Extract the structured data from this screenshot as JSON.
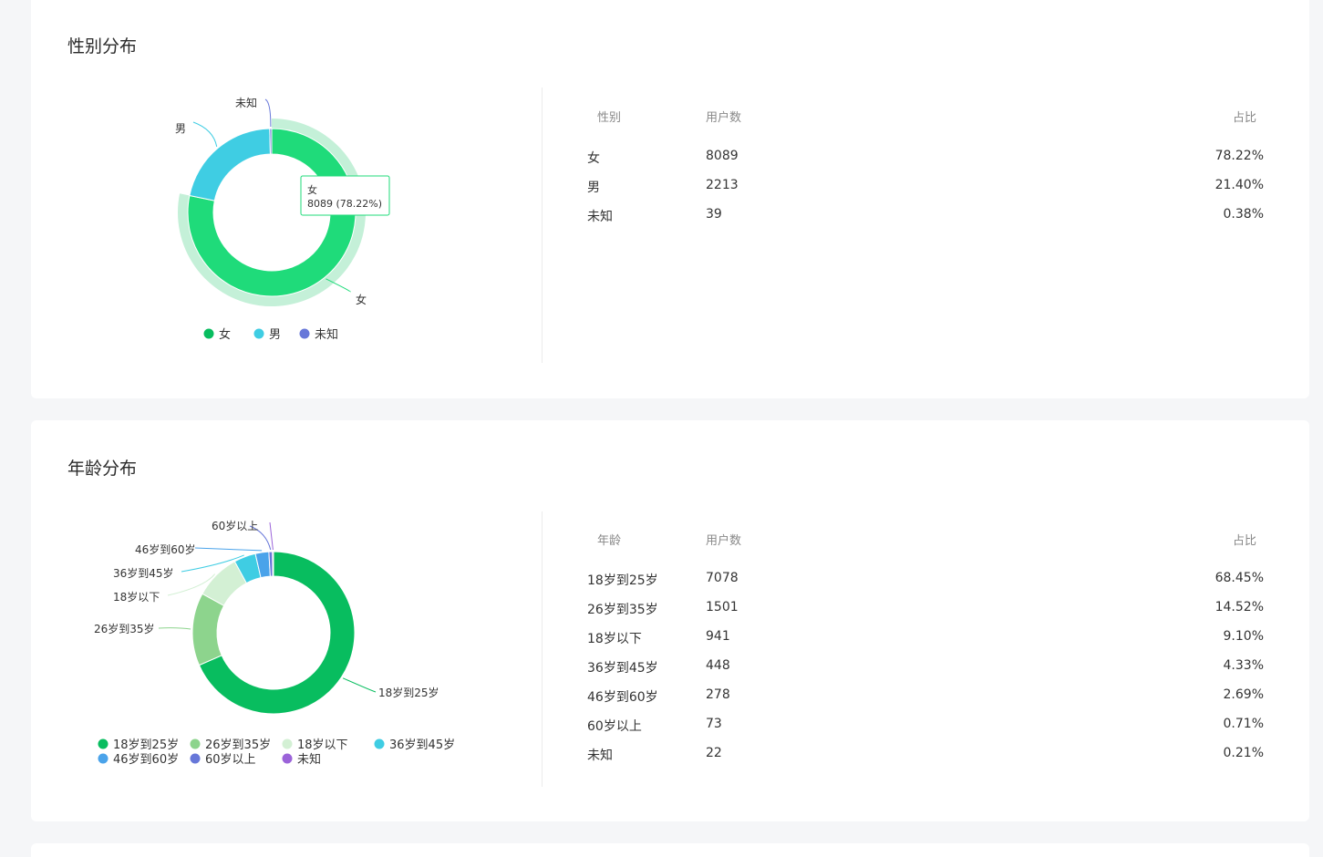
{
  "gender": {
    "title": "性别分布",
    "table": {
      "headers": [
        "性别",
        "用户数",
        "占比"
      ],
      "rows": [
        {
          "label": "女",
          "count": "8089",
          "pct": "78.22%"
        },
        {
          "label": "男",
          "count": "2213",
          "pct": "21.40%"
        },
        {
          "label": "未知",
          "count": "39",
          "pct": "0.38%"
        }
      ]
    },
    "tooltip": {
      "name": "女",
      "value": "8089 (78.22%)"
    }
  },
  "age": {
    "title": "年龄分布",
    "table": {
      "headers": [
        "年龄",
        "用户数",
        "占比"
      ],
      "rows": [
        {
          "label": "18岁到25岁",
          "count": "7078",
          "pct": "68.45%"
        },
        {
          "label": "26岁到35岁",
          "count": "1501",
          "pct": "14.52%"
        },
        {
          "label": "18岁以下",
          "count": "941",
          "pct": "9.10%"
        },
        {
          "label": "36岁到45岁",
          "count": "448",
          "pct": "4.33%"
        },
        {
          "label": "46岁到60岁",
          "count": "278",
          "pct": "2.69%"
        },
        {
          "label": "60岁以上",
          "count": "73",
          "pct": "0.71%"
        },
        {
          "label": "未知",
          "count": "22",
          "pct": "0.21%"
        }
      ]
    }
  },
  "chart_data": [
    {
      "type": "pie",
      "title": "性别分布",
      "categories": [
        "女",
        "男",
        "未知"
      ],
      "values": [
        8089,
        2213,
        39
      ],
      "colors": [
        "#1fdb7a",
        "#3fcde3",
        "#6777d9"
      ],
      "legend": [
        "女",
        "男",
        "未知"
      ],
      "legend_colors": [
        "#08bd5f",
        "#3fcde3",
        "#6777d9"
      ],
      "legend_position": "bottom",
      "donut": true,
      "highlighted": "女"
    },
    {
      "type": "pie",
      "title": "年龄分布",
      "categories": [
        "18岁到25岁",
        "26岁到35岁",
        "18岁以下",
        "36岁到45岁",
        "46岁到60岁",
        "60岁以上",
        "未知"
      ],
      "values": [
        7078,
        1501,
        941,
        448,
        278,
        73,
        22
      ],
      "colors": [
        "#08bd5f",
        "#8dd48d",
        "#d3f0d4",
        "#3fcde3",
        "#4aa3ea",
        "#6777d9",
        "#9b63d9"
      ],
      "legend": [
        "18岁到25岁",
        "26岁到35岁",
        "18岁以下",
        "36岁到45岁",
        "46岁到60岁",
        "60岁以上",
        "未知"
      ],
      "legend_position": "bottom",
      "donut": true
    }
  ]
}
